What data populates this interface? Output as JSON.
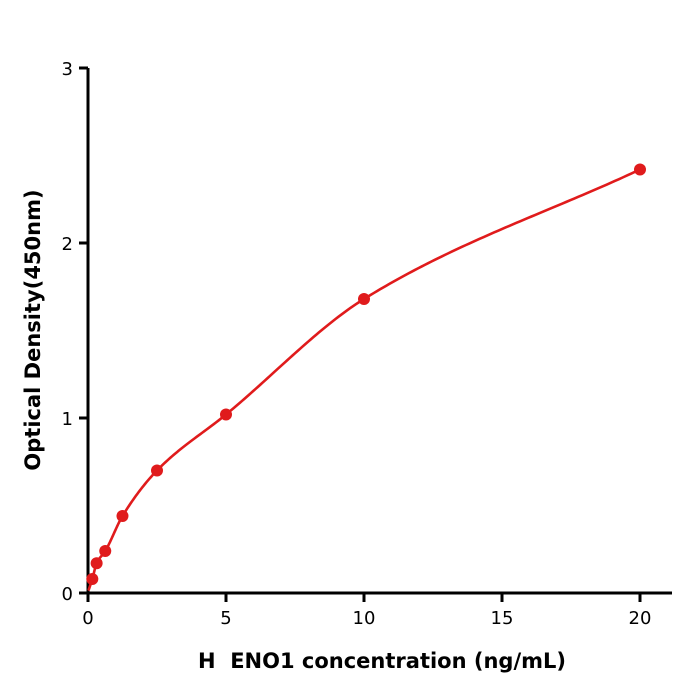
{
  "chart_data": {
    "type": "scatter",
    "title": "",
    "xlabel": "H  ENO1 concentration (ng/mL)",
    "ylabel": "Optical Density(450nm)",
    "xlim": [
      0,
      21.2
    ],
    "ylim": [
      0,
      3
    ],
    "xticks": [
      0,
      5,
      10,
      15,
      20
    ],
    "yticks": [
      0,
      1,
      2,
      3
    ],
    "grid": false,
    "legend": "none",
    "series_color": "#e01b1c",
    "axis_color": "#000000",
    "marker": "circle",
    "fit_curve": true,
    "points": {
      "x": [
        0.156,
        0.3125,
        0.625,
        1.25,
        2.5,
        5,
        10,
        20
      ],
      "y": [
        0.08,
        0.17,
        0.24,
        0.44,
        0.7,
        1.02,
        1.68,
        2.42
      ]
    }
  }
}
